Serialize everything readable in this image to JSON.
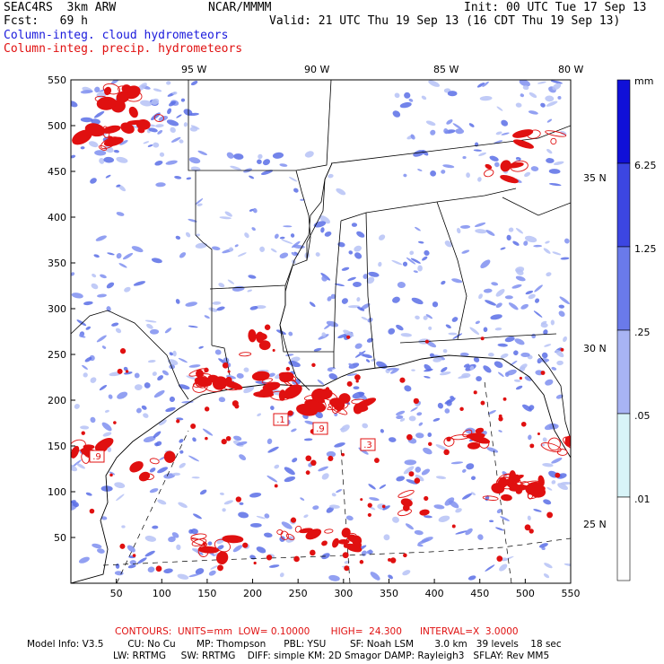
{
  "header": {
    "model": "SEAC4RS  3km ARW",
    "org": "NCAR/MMMM",
    "init": "Init: 00 UTC Tue 17 Sep 13",
    "fcst": "Fcst:   69 h",
    "valid": "Valid: 21 UTC Thu 19 Sep 13 (16 CDT Thu 19 Sep 13)",
    "field1": "Column-integ. cloud hydrometeors",
    "field2": "Column-integ. precip. hydrometeors"
  },
  "colors": {
    "cloud": "#7f8ff0",
    "cloud_light": "#b6c2f6",
    "precip": "#e01010",
    "label_box": "#e01010"
  },
  "axes": {
    "x_ticks": [
      "50",
      "100",
      "150",
      "200",
      "250",
      "300",
      "350",
      "400",
      "450",
      "500",
      "550"
    ],
    "y_ticks": [
      "50",
      "100",
      "150",
      "200",
      "250",
      "300",
      "350",
      "400",
      "450",
      "500",
      "550"
    ],
    "lon_labels": [
      "95 W",
      "90 W",
      "85 W",
      "80 W"
    ],
    "lat_labels": [
      "35 N",
      "30 N",
      "25 N"
    ],
    "x_range": [
      0,
      550
    ],
    "y_range": [
      0,
      550
    ]
  },
  "contour_labels": [
    ".9",
    ".1",
    ".9",
    ".3"
  ],
  "colorbar": {
    "unit": "mm",
    "levels": [
      "6.25",
      "1.25",
      ".25",
      ".05",
      ".01"
    ],
    "colors": [
      "#1010d8",
      "#3c46e2",
      "#6a7aea",
      "#a8b4f4",
      "#d8f4f8",
      "#ffffff"
    ]
  },
  "footer": {
    "contours": "CONTOURS:  UNITS=mm  LOW= 0.10000       HIGH=  24.300      INTERVAL=X  3.0000",
    "line1": "Model Info: V3.5        CU: No Cu       MP: Thompson      PBL: YSU        SF: Noah LSM       3.0 km   39 levels    18 sec",
    "line2": "LW: RRTMG     SW: RRTMG    DIFF: simple KM: 2D Smagor DAMP: Rayleigh3   SFLAY: Rev MM5"
  }
}
